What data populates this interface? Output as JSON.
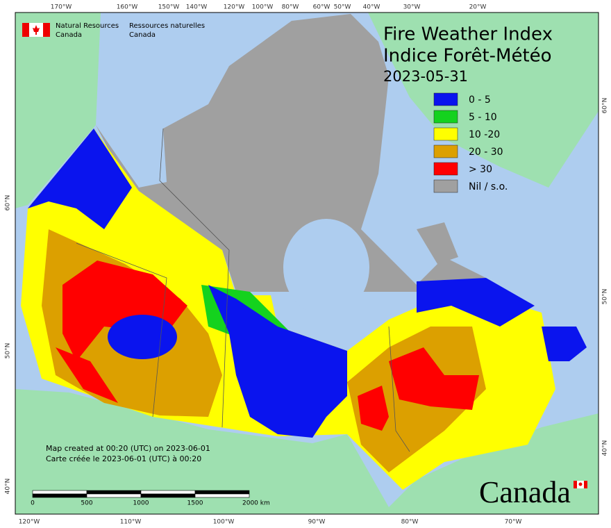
{
  "header": {
    "agency_en": [
      "Natural Resources",
      "Canada"
    ],
    "agency_fr": [
      "Ressources naturelles",
      "Canada"
    ]
  },
  "title": [
    "Fire Weather Index",
    "Indice Forêt-Météo",
    "2023-05-31"
  ],
  "legend": [
    {
      "label": "0 - 5",
      "color": "#0a14ee"
    },
    {
      "label": "5 - 10",
      "color": "#14d21e"
    },
    {
      "label": "10 -20",
      "color": "#ffff00"
    },
    {
      "label": "20 - 30",
      "color": "#dca000"
    },
    {
      "label": "> 30",
      "color": "#ff0000"
    },
    {
      "label": "Nil / s.o.",
      "color": "#a0a0a0"
    }
  ],
  "graticule": {
    "top": [
      "170°W",
      "160°W",
      "150°W",
      "140°W",
      "120°W",
      "100°W",
      "80°W",
      "60°W",
      "50°W",
      "40°W",
      "30°W",
      "20°W"
    ],
    "bottom": [
      "120°W",
      "110°W",
      "100°W",
      "90°W",
      "80°W",
      "70°W"
    ],
    "left": [
      "60°N",
      "50°N",
      "40°N"
    ],
    "right": [
      "60°N",
      "50°N",
      "40°N"
    ]
  },
  "footer": [
    "Map created at 00:20 (UTC) on 2023-06-01",
    "Carte créée le 2023-06-01 (UTC) à 00:20"
  ],
  "scale_bar": [
    "0",
    "500",
    "1000",
    "1500",
    "2000 km"
  ],
  "wordmark": "Canada"
}
